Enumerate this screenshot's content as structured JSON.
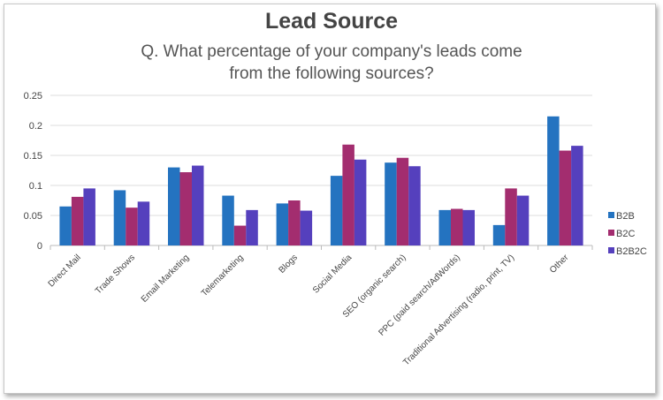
{
  "chart_data": {
    "type": "bar",
    "title": "Lead Source",
    "subtitle": "Q. What percentage of your company's leads come from the following sources?",
    "categories": [
      "Direct Mail",
      "Trade Shows",
      "Email Marketing",
      "Telemarketing",
      "Blogs",
      "Social Media",
      "SEO (organic search)",
      "PPC (paid search/AdWords)",
      "Traditional Advertising (radio, print, TV)",
      "Other"
    ],
    "series": [
      {
        "name": "B2B",
        "color": "#2473c0",
        "values": [
          0.065,
          0.092,
          0.13,
          0.083,
          0.07,
          0.116,
          0.138,
          0.059,
          0.034,
          0.215
        ]
      },
      {
        "name": "B2C",
        "color": "#a32d6f",
        "values": [
          0.081,
          0.063,
          0.122,
          0.033,
          0.075,
          0.168,
          0.146,
          0.061,
          0.095,
          0.158
        ]
      },
      {
        "name": "B2B2C",
        "color": "#5540bd",
        "values": [
          0.095,
          0.073,
          0.133,
          0.059,
          0.058,
          0.143,
          0.132,
          0.059,
          0.083,
          0.166
        ]
      }
    ],
    "ylim": [
      0,
      0.25
    ],
    "yticks": [
      "0",
      "0.05",
      "0.1",
      "0.15",
      "0.2",
      "0.25"
    ],
    "grid": true,
    "legend": "right"
  }
}
